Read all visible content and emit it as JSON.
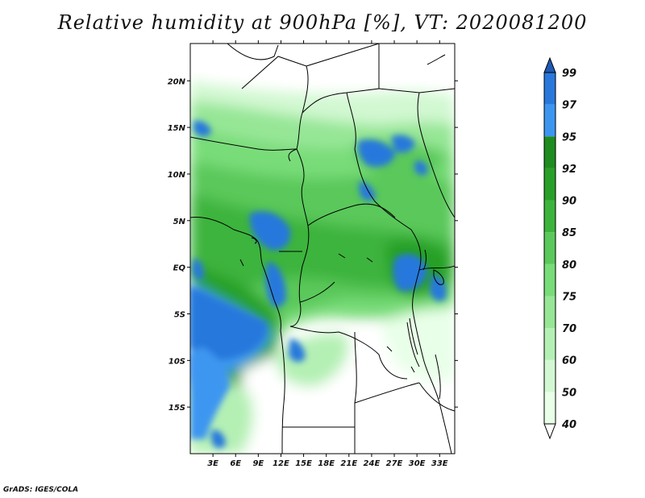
{
  "title": "Relative humidity at 900hPa [%], VT: 2020081200",
  "footer": "GrADS: IGES/COLA",
  "map": {
    "lon_range": [
      0,
      35
    ],
    "lat_range": [
      -20,
      24
    ],
    "lat_ticks": [
      {
        "value": 20,
        "label": "20N"
      },
      {
        "value": 15,
        "label": "15N"
      },
      {
        "value": 10,
        "label": "10N"
      },
      {
        "value": 5,
        "label": "5N"
      },
      {
        "value": 0,
        "label": "EQ"
      },
      {
        "value": -5,
        "label": "5S"
      },
      {
        "value": -10,
        "label": "10S"
      },
      {
        "value": -15,
        "label": "15S"
      }
    ],
    "lon_ticks": [
      {
        "value": 3,
        "label": "3E"
      },
      {
        "value": 6,
        "label": "6E"
      },
      {
        "value": 9,
        "label": "9E"
      },
      {
        "value": 12,
        "label": "12E"
      },
      {
        "value": 15,
        "label": "15E"
      },
      {
        "value": 18,
        "label": "18E"
      },
      {
        "value": 21,
        "label": "21E"
      },
      {
        "value": 24,
        "label": "24E"
      },
      {
        "value": 27,
        "label": "27E"
      },
      {
        "value": 30,
        "label": "30E"
      },
      {
        "value": 33,
        "label": "33E"
      }
    ]
  },
  "colorbar": {
    "levels": [
      "40",
      "50",
      "60",
      "70",
      "75",
      "80",
      "85",
      "90",
      "92",
      "95",
      "97",
      "99"
    ],
    "colors": [
      "#ffffff",
      "#e8ffe8",
      "#d2f8d2",
      "#b4f0b4",
      "#96e696",
      "#78dc78",
      "#5ac85a",
      "#3cb43c",
      "#28a028",
      "#1e8c1e",
      "#3c96f0",
      "#2878dc",
      "#1e5ab4"
    ]
  }
}
